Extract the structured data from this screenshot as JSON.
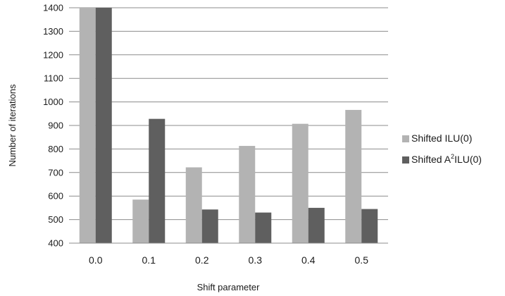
{
  "chart_data": {
    "type": "bar",
    "categories": [
      "0.0",
      "0.1",
      "0.2",
      "0.3",
      "0.4",
      "0.5"
    ],
    "series": [
      {
        "name": "Shifted ILU(0)",
        "name_parts": [
          "Shifted ILU(0)"
        ],
        "color": "#b3b3b3",
        "values": [
          1400,
          585,
          722,
          813,
          907,
          966
        ]
      },
      {
        "name": "Shifted A2ILU(0)",
        "name_parts": [
          "Shifted A",
          "2",
          "ILU(0)"
        ],
        "color": "#5f5f5f",
        "values": [
          1400,
          928,
          543,
          530,
          550,
          545
        ]
      }
    ],
    "xlabel": "Shift parameter",
    "ylabel": "Number of iterations",
    "ylim": [
      400,
      1400
    ],
    "yticks": [
      "400",
      "500",
      "600",
      "700",
      "800",
      "900",
      "1000",
      "1100",
      "1200",
      "1300",
      "1400"
    ],
    "grid": true,
    "legend": "right"
  }
}
